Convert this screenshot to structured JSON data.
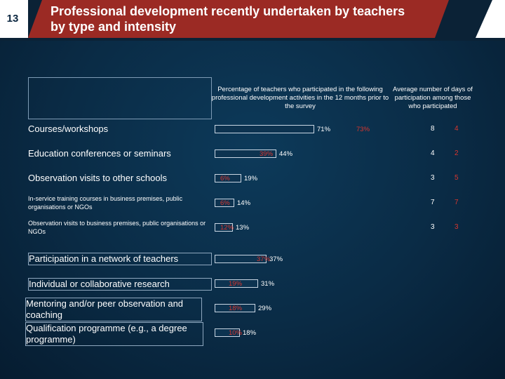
{
  "slide_number": "13",
  "title": "Professional development recently undertaken by teachers by type and intensity",
  "chart_data": {
    "type": "bar",
    "column_headers": {
      "participation": "Percentage of teachers who participated in the following professional development activities in the 12 months prior to the survey",
      "days": "Average number of days of participation among those who participated"
    },
    "categories": [
      "Courses/workshops",
      "Education conferences or seminars",
      "Observation visits to other schools",
      "In-service training courses in business premises, public organisations or NGOs",
      "Observation visits to business premises, public organisations or NGOs",
      "Participation in a network of teachers",
      "Individual or collaborative research",
      "Mentoring and/or peer observation and coaching",
      "Qualification programme (e.g., a degree programme)"
    ],
    "series": [
      {
        "name": "Percentage (white)",
        "color": "#ffffff",
        "values": [
          71,
          44,
          19,
          14,
          13,
          37,
          31,
          29,
          18
        ],
        "labels": [
          "71%",
          "44%",
          "19%",
          "14%",
          "13%",
          "37%",
          "31%",
          "29%",
          "18%"
        ]
      },
      {
        "name": "Percentage (red)",
        "color": "#d8362e",
        "values": [
          73,
          39,
          6,
          6,
          12,
          37,
          19,
          18,
          10
        ],
        "labels": [
          "73%",
          "39%",
          "6%",
          "6%",
          "12%",
          "37%",
          "19%",
          "18%",
          "10%"
        ]
      }
    ],
    "days_white": [
      "8",
      "4",
      "3",
      "7",
      "3"
    ],
    "days_red": [
      "4",
      "2",
      "5",
      "7",
      "3"
    ],
    "xlim": [
      0,
      100
    ]
  }
}
